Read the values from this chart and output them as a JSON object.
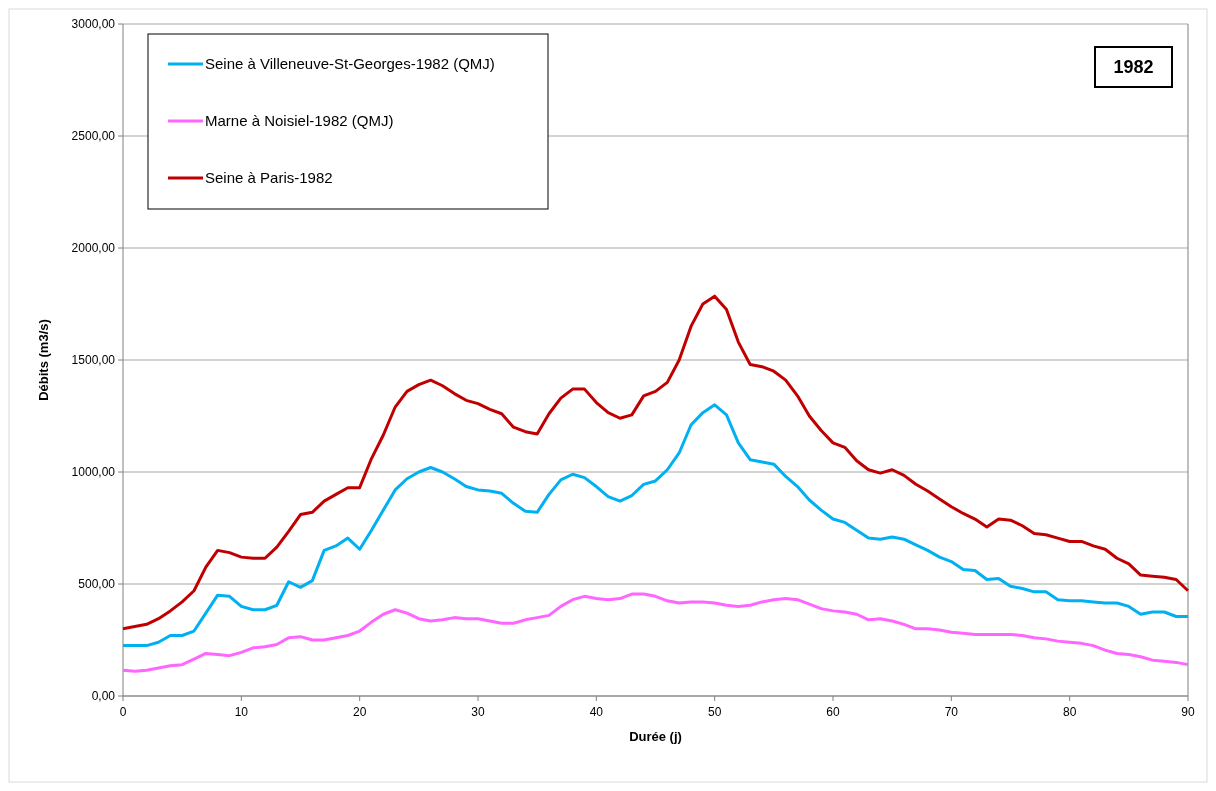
{
  "chart_data": {
    "type": "line",
    "xlabel": "Durée (j)",
    "ylabel": "Débits (m3/s)",
    "annotations": [
      "1982"
    ],
    "x": [
      0,
      1,
      2,
      3,
      4,
      5,
      6,
      7,
      8,
      9,
      10,
      11,
      12,
      13,
      14,
      15,
      16,
      17,
      18,
      19,
      20,
      21,
      22,
      23,
      24,
      25,
      26,
      27,
      28,
      29,
      30,
      31,
      32,
      33,
      34,
      35,
      36,
      37,
      38,
      39,
      40,
      41,
      42,
      43,
      44,
      45,
      46,
      47,
      48,
      49,
      50,
      51,
      52,
      53,
      54,
      55,
      56,
      57,
      58,
      59,
      60,
      61,
      62,
      63,
      64,
      65,
      66,
      67,
      68,
      69,
      70,
      71,
      72,
      73,
      74,
      75,
      76,
      77,
      78,
      79,
      80,
      81,
      82,
      83,
      84,
      85,
      86,
      87,
      88,
      89,
      90
    ],
    "xlim": [
      0,
      90
    ],
    "xticks": [
      0,
      10,
      20,
      30,
      40,
      50,
      60,
      70,
      80,
      90
    ],
    "ylim": [
      0,
      3000
    ],
    "yticks": [
      {
        "value": 0,
        "label": "0,00"
      },
      {
        "value": 500,
        "label": "500,00"
      },
      {
        "value": 1000,
        "label": "1000,00"
      },
      {
        "value": 1500,
        "label": "1500,00"
      },
      {
        "value": 2000,
        "label": "2000,00"
      },
      {
        "value": 2500,
        "label": "2500,00"
      },
      {
        "value": 3000,
        "label": "3000,00"
      }
    ],
    "grid": "y",
    "legend": "top left",
    "marker": "none",
    "line_style": "solid",
    "series": [
      {
        "name": "Seine à Villeneuve-St-Georges-1982 (QMJ)",
        "color": "#00b0f0",
        "values": [
          225,
          225,
          225,
          240,
          270,
          270,
          290,
          370,
          450,
          445,
          400,
          385,
          385,
          405,
          510,
          485,
          515,
          650,
          670,
          705,
          655,
          740,
          830,
          920,
          970,
          1000,
          1020,
          1000,
          970,
          935,
          920,
          915,
          905,
          860,
          825,
          820,
          900,
          965,
          990,
          975,
          935,
          890,
          870,
          895,
          945,
          960,
          1010,
          1085,
          1210,
          1265,
          1300,
          1255,
          1130,
          1055,
          1045,
          1035,
          980,
          935,
          875,
          830,
          790,
          775,
          740,
          705,
          700,
          710,
          700,
          675,
          650,
          620,
          600,
          565,
          560,
          520,
          525,
          490,
          480,
          465,
          465,
          430,
          425,
          425,
          420,
          415,
          415,
          400,
          365,
          375,
          375,
          355,
          355
        ]
      },
      {
        "name": "Marne à Noisiel-1982 (QMJ)",
        "color": "#ff66ff",
        "values": [
          115,
          110,
          115,
          125,
          135,
          140,
          165,
          190,
          185,
          180,
          195,
          215,
          220,
          230,
          260,
          265,
          250,
          250,
          260,
          270,
          290,
          330,
          365,
          385,
          370,
          345,
          335,
          340,
          350,
          345,
          345,
          335,
          325,
          325,
          340,
          350,
          360,
          400,
          430,
          445,
          435,
          430,
          435,
          455,
          455,
          445,
          425,
          415,
          420,
          420,
          415,
          405,
          400,
          405,
          420,
          430,
          435,
          430,
          410,
          390,
          380,
          375,
          365,
          340,
          345,
          335,
          320,
          300,
          300,
          295,
          285,
          280,
          275,
          275,
          275,
          275,
          270,
          260,
          255,
          245,
          240,
          235,
          225,
          205,
          190,
          185,
          175,
          160,
          155,
          150,
          140
        ]
      },
      {
        "name": "Seine à Paris-1982",
        "color": "#c00000",
        "values": [
          300,
          310,
          320,
          345,
          380,
          420,
          470,
          575,
          650,
          640,
          620,
          615,
          615,
          665,
          735,
          810,
          820,
          870,
          900,
          930,
          930,
          1060,
          1165,
          1290,
          1360,
          1390,
          1410,
          1385,
          1350,
          1320,
          1305,
          1280,
          1260,
          1200,
          1180,
          1170,
          1260,
          1330,
          1370,
          1370,
          1310,
          1265,
          1240,
          1255,
          1340,
          1360,
          1400,
          1500,
          1650,
          1750,
          1785,
          1725,
          1580,
          1480,
          1470,
          1450,
          1410,
          1340,
          1250,
          1185,
          1130,
          1110,
          1050,
          1010,
          995,
          1010,
          985,
          945,
          915,
          880,
          845,
          815,
          790,
          755,
          790,
          785,
          760,
          725,
          720,
          705,
          690,
          690,
          670,
          655,
          615,
          590,
          540,
          535,
          530,
          520,
          470
        ]
      }
    ]
  }
}
